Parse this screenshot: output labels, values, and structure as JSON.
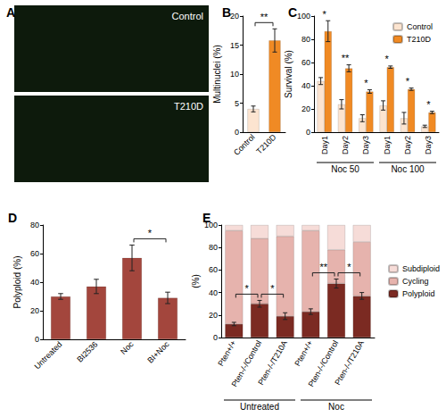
{
  "chart_data": [
    {
      "type": "image",
      "title": "A",
      "labels": [
        "Control",
        "T210D"
      ]
    },
    {
      "type": "bar",
      "title": "B",
      "y_label": "Multinuclei (%)",
      "categories": [
        "Control",
        "T210D"
      ],
      "values": [
        4,
        15.8
      ],
      "errors": [
        0.5,
        2
      ],
      "colors": [
        "#fce4d0",
        "#f08a24"
      ],
      "ylim": [
        0,
        20
      ],
      "yticks": [
        0,
        5,
        10,
        15,
        20
      ],
      "comparisons": [
        {
          "between": [
            "Control",
            "T210D"
          ],
          "label": "**"
        }
      ]
    },
    {
      "type": "bar",
      "title": "C",
      "y_label": "Survival (%)",
      "categories": [
        "Day1",
        "Day2",
        "Day3",
        "Day1",
        "Day2",
        "Day3"
      ],
      "groups": [
        "Noc 50",
        "Noc 100"
      ],
      "series": [
        {
          "name": "Control",
          "color": "#fce4d0",
          "values": [
            44,
            24,
            12,
            23,
            12,
            5
          ],
          "errors": [
            3,
            4,
            3,
            4,
            5,
            1
          ]
        },
        {
          "name": "T210D",
          "color": "#f08a24",
          "values": [
            87,
            55,
            35,
            56,
            37,
            17
          ],
          "errors": [
            9,
            3,
            1.5,
            1,
            1,
            1
          ]
        }
      ],
      "annotations": [
        "*",
        "**",
        "*",
        "*",
        "*",
        "*"
      ],
      "ylim": [
        0,
        100
      ],
      "yticks": [
        0,
        20,
        40,
        60,
        80,
        100
      ],
      "legend": "top-right"
    },
    {
      "type": "bar",
      "title": "D",
      "y_label": "Polyploid (%)",
      "categories": [
        "Untreated",
        "BI2536",
        "Noc",
        "BI+Noc"
      ],
      "values": [
        30,
        37,
        57,
        29
      ],
      "errors": [
        2,
        5,
        9,
        4
      ],
      "color": "#a3463d",
      "ylim": [
        0,
        80
      ],
      "yticks": [
        0,
        20,
        40,
        60,
        80
      ],
      "comparisons": [
        {
          "between": [
            "Noc",
            "BI+Noc"
          ],
          "label": "*"
        }
      ]
    },
    {
      "type": "bar",
      "title": "E",
      "y_label": "(%)",
      "stacked": true,
      "categories": [
        "Pten+/+",
        "Pten-/-/Control",
        "Pten-/-/T210A",
        "Pten+/+",
        "Pten-/-/Control",
        "Pten-/-/T210A"
      ],
      "groups": [
        "Untreated",
        "Noc"
      ],
      "series": [
        {
          "name": "Polyploid",
          "color": "#7b2a22",
          "values": [
            12,
            30,
            19,
            23,
            48,
            37
          ],
          "errors": [
            1.5,
            3,
            3,
            2.5,
            4,
            3
          ]
        },
        {
          "name": "Cycling",
          "color": "#e6b3ad",
          "values": [
            83,
            58,
            71,
            72,
            30,
            48
          ]
        },
        {
          "name": "Subdiploid",
          "color": "#f6dcd8",
          "values": [
            5,
            12,
            10,
            5,
            22,
            15
          ]
        }
      ],
      "ylim": [
        0,
        100
      ],
      "yticks": [
        0,
        20,
        40,
        60,
        80,
        100
      ],
      "legend": "right",
      "comparisons": [
        {
          "group": "Untreated",
          "between": [
            "Pten+/+",
            "Pten-/-/Control"
          ],
          "label": "*"
        },
        {
          "group": "Untreated",
          "between": [
            "Pten-/-/Control",
            "Pten-/-/T210A"
          ],
          "label": "*"
        },
        {
          "group": "Noc",
          "between": [
            "Pten+/+",
            "Pten-/-/Control"
          ],
          "label": "**"
        },
        {
          "group": "Noc",
          "between": [
            "Pten-/-/Control",
            "Pten-/-/T210A"
          ],
          "label": "*"
        }
      ]
    }
  ]
}
